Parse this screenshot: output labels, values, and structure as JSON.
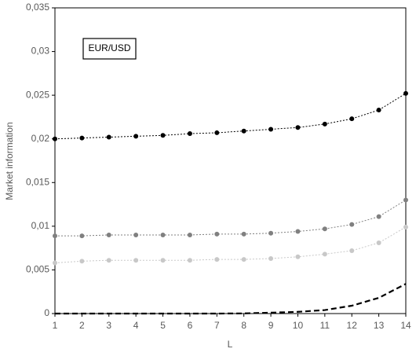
{
  "chart_data": {
    "type": "line",
    "annotation": "EUR/USD",
    "xlabel": "L",
    "ylabel": "Market information",
    "x": [
      1,
      2,
      3,
      4,
      5,
      6,
      7,
      8,
      9,
      10,
      11,
      12,
      13,
      14
    ],
    "xlim": [
      1,
      14
    ],
    "xticks": [
      1,
      2,
      3,
      4,
      5,
      6,
      7,
      8,
      9,
      10,
      11,
      12,
      13,
      14
    ],
    "ylim": [
      0,
      0.035
    ],
    "yticks": [
      0,
      {
        "value": 0.005,
        "label": "0,005"
      },
      {
        "value": 0.01,
        "label": "0,01"
      },
      {
        "value": 0.015,
        "label": "0,015"
      },
      {
        "value": 0.02,
        "label": "0,02"
      },
      {
        "value": 0.025,
        "label": "0,025"
      },
      {
        "value": 0.03,
        "label": "0,03"
      },
      {
        "value": 0.035,
        "label": "0,035"
      }
    ],
    "series": [
      {
        "color": "#000000",
        "style": "dotted",
        "markers": true,
        "values": [
          0.02,
          0.0201,
          0.0202,
          0.0203,
          0.0204,
          0.0206,
          0.0207,
          0.0209,
          0.0211,
          0.0213,
          0.0217,
          0.0223,
          0.0233,
          0.0252
        ]
      },
      {
        "color": "#808080",
        "style": "dotted",
        "markers": true,
        "values": [
          0.0089,
          0.0089,
          0.009,
          0.009,
          0.009,
          0.009,
          0.0091,
          0.0091,
          0.0092,
          0.0094,
          0.0097,
          0.0102,
          0.0111,
          0.013
        ]
      },
      {
        "color": "#c8c8c8",
        "style": "dotted",
        "markers": true,
        "values": [
          0.0058,
          0.006,
          0.0061,
          0.0061,
          0.0061,
          0.0061,
          0.0062,
          0.0062,
          0.0063,
          0.0065,
          0.0068,
          0.0072,
          0.0081,
          0.0099
        ]
      },
      {
        "color": "#000000",
        "style": "dashed",
        "markers": false,
        "values": [
          0,
          0,
          0,
          0,
          0,
          0,
          0,
          2e-05,
          0.0001,
          0.0002,
          0.0004,
          0.0009,
          0.0018,
          0.0034
        ]
      }
    ]
  }
}
